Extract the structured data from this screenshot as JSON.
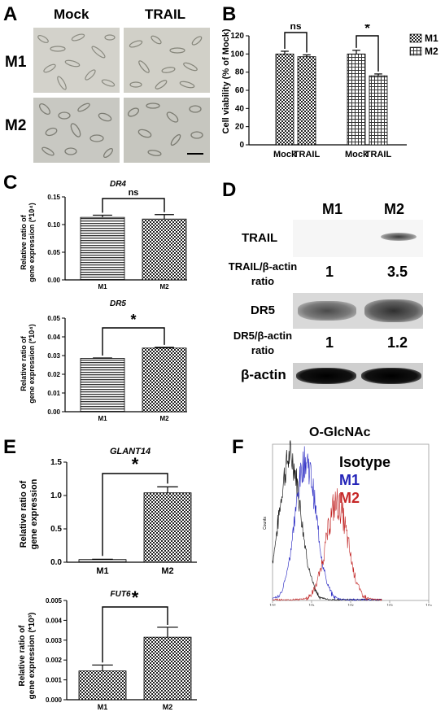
{
  "panels": {
    "a": {
      "letter": "A",
      "col_labels": [
        "Mock",
        "TRAIL"
      ],
      "row_labels": [
        "M1",
        "M2"
      ]
    },
    "b": {
      "letter": "B",
      "ylabel": "Cell viability (% of Mock)",
      "legend": [
        "M1",
        "M2"
      ],
      "groups": [
        "Mock",
        "TRAIL",
        "Mock",
        "TRAIL"
      ],
      "sig": [
        "ns",
        "*"
      ]
    },
    "c": {
      "letter": "C",
      "dr4_title": "DR4",
      "dr5_title": "DR5",
      "ylabel_line1": "Relative ratio of",
      "ylabel_line2": "gene expression (*10⁴)",
      "sig_dr4": "ns",
      "sig_dr5": "*"
    },
    "d": {
      "letter": "D",
      "col_labels": [
        "M1",
        "M2"
      ],
      "trail_label": "TRAIL",
      "trail_ratio_line1": "TRAIL/β-actin",
      "trail_ratio_line2": "ratio",
      "trail_ratios": [
        "1",
        "3.5"
      ],
      "dr5_label": "DR5",
      "dr5_ratio_line1": "DR5/β-actin",
      "dr5_ratio_line2": "ratio",
      "dr5_ratios": [
        "1",
        "1.2"
      ],
      "actin_label": "β-actin"
    },
    "e": {
      "letter": "E",
      "glant_title": "GLANT14",
      "fut_title": "FUT6",
      "glant_ylabel_line1": "Relative ratio of",
      "glant_ylabel_line2": "gene expression",
      "fut_ylabel_line1": "Relative ratio of",
      "fut_ylabel_line2": "gene expression (*10³)",
      "sig": "*"
    },
    "f": {
      "letter": "F",
      "title": "O-GlcNAc",
      "legend": [
        "Isotype",
        "M1",
        "M2"
      ],
      "ylabel": "Counts"
    }
  },
  "chart_data": [
    {
      "id": "B",
      "type": "bar",
      "ylabel": "Cell viability (% of Mock)",
      "categories": [
        "Mock",
        "TRAIL",
        "Mock",
        "TRAIL"
      ],
      "values": [
        100,
        97,
        100,
        76
      ],
      "errors": [
        3,
        2,
        4,
        2
      ],
      "series_of_bar": [
        "M1",
        "M1",
        "M2",
        "M2"
      ],
      "yticks": [
        0,
        20,
        40,
        60,
        80,
        100,
        120
      ],
      "ylim": [
        0,
        120
      ],
      "legend": [
        "M1",
        "M2"
      ],
      "legend_position": "top-right"
    },
    {
      "id": "C-DR4",
      "type": "bar",
      "title": "DR4",
      "ylabel": "Relative ratio of gene expression (*10⁴)",
      "categories": [
        "M1",
        "M2"
      ],
      "values": [
        0.113,
        0.11
      ],
      "errors": [
        0.004,
        0.008
      ],
      "yticks": [
        "0.00",
        "0.05",
        "0.10",
        "0.15"
      ],
      "ylim": [
        0,
        0.15
      ]
    },
    {
      "id": "C-DR5",
      "type": "bar",
      "title": "DR5",
      "ylabel": "Relative ratio of gene expression (*10⁴)",
      "categories": [
        "M1",
        "M2"
      ],
      "values": [
        0.0285,
        0.034
      ],
      "errors": [
        0.0002,
        0.0004
      ],
      "yticks": [
        "0.00",
        "0.01",
        "0.02",
        "0.03",
        "0.04",
        "0.05"
      ],
      "ylim": [
        0,
        0.05
      ]
    },
    {
      "id": "E-GLANT14",
      "type": "bar",
      "title": "GLANT14",
      "ylabel": "Relative ratio of gene expression",
      "categories": [
        "M1",
        "M2"
      ],
      "values": [
        0.04,
        1.04
      ],
      "errors": [
        0.005,
        0.09
      ],
      "yticks": [
        "0.0",
        "0.5",
        "1.0",
        "1.5"
      ],
      "ylim": [
        0,
        1.5
      ]
    },
    {
      "id": "E-FUT6",
      "type": "bar",
      "title": "FUT6",
      "ylabel": "Relative ratio of gene expression (*10³)",
      "categories": [
        "M1",
        "M2"
      ],
      "values": [
        0.00145,
        0.00315
      ],
      "errors": [
        0.0003,
        0.0005
      ],
      "yticks": [
        "0.000",
        "0.001",
        "0.002",
        "0.003",
        "0.004",
        "0.005"
      ],
      "ylim": [
        0,
        0.005
      ]
    },
    {
      "id": "F",
      "type": "line",
      "title": "O-GlcNAc",
      "ylabel": "Counts",
      "xscale": "log",
      "xticks": [
        "10⁰",
        "10¹",
        "10²",
        "10³",
        "10⁴"
      ],
      "series": [
        {
          "name": "Isotype",
          "color": "#000000",
          "peak_log10": 0.45
        },
        {
          "name": "M1",
          "color": "#2020c0",
          "peak_log10": 0.85
        },
        {
          "name": "M2",
          "color": "#c02020",
          "peak_log10": 1.65
        }
      ]
    }
  ],
  "colors": {
    "isotype": "#000000",
    "m1": "#2323b8",
    "m2": "#c62828"
  }
}
